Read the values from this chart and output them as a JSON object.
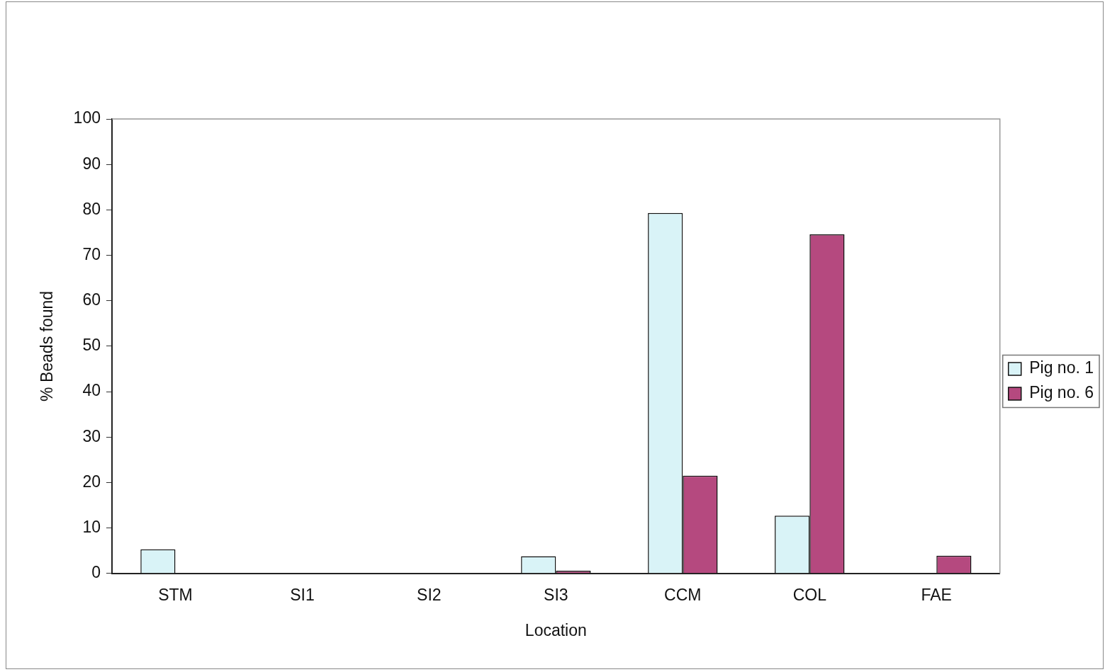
{
  "chart_data": {
    "type": "bar",
    "xlabel": "Location",
    "ylabel": "% Beads found",
    "categories": [
      "STM",
      "SI1",
      "SI2",
      "SI3",
      "CCM",
      "COL",
      "FAE"
    ],
    "series": [
      {
        "name": "Pig no. 1",
        "color": "#d9f3f7",
        "values": [
          5.3,
          0,
          0,
          3.8,
          79.3,
          12.7,
          0
        ]
      },
      {
        "name": "Pig no. 6",
        "color": "#b5497f",
        "values": [
          0,
          0,
          0,
          0.6,
          21.5,
          74.6,
          3.9
        ]
      }
    ],
    "ylim": [
      0,
      100
    ],
    "yticks": [
      0,
      10,
      20,
      30,
      40,
      50,
      60,
      70,
      80,
      90,
      100
    ],
    "grid": false,
    "legend": "right"
  }
}
